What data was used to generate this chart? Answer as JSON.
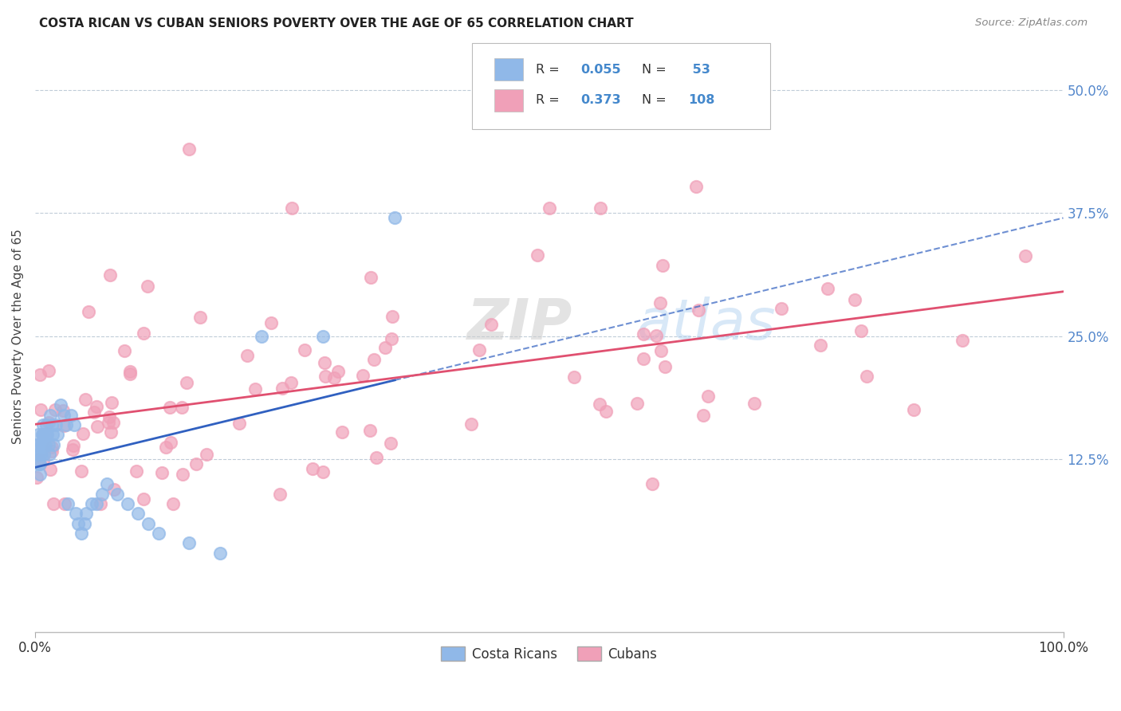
{
  "title": "COSTA RICAN VS CUBAN SENIORS POVERTY OVER THE AGE OF 65 CORRELATION CHART",
  "source": "Source: ZipAtlas.com",
  "ylabel": "Seniors Poverty Over the Age of 65",
  "cr_color": "#90b8e8",
  "cu_color": "#f0a0b8",
  "cr_line_color": "#3060c0",
  "cu_line_color": "#e05070",
  "cr_R": 0.055,
  "cr_N": 53,
  "cu_R": 0.373,
  "cu_N": 108,
  "watermark": "ZIPatlas",
  "xlim": [
    0.0,
    1.0
  ],
  "ylim": [
    -0.05,
    0.55
  ],
  "yticks": [
    0.125,
    0.25,
    0.375,
    0.5
  ],
  "ytick_labels": [
    "12.5%",
    "25.0%",
    "37.5%",
    "50.0%"
  ],
  "grid_color": "#c0ccd8",
  "background": "#ffffff"
}
